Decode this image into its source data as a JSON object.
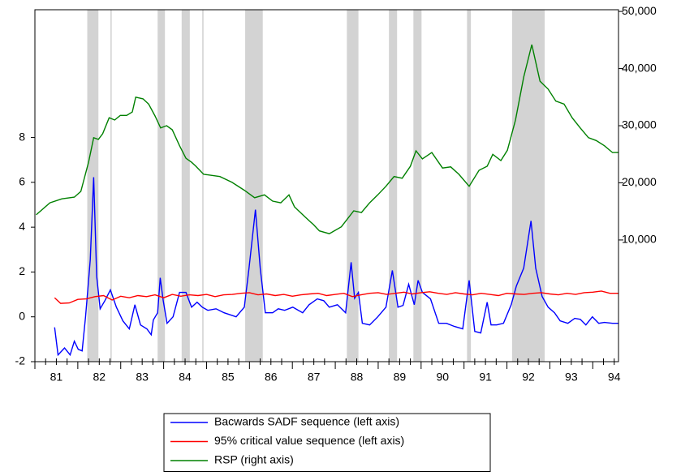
{
  "chart_data": {
    "type": "line",
    "xlim": [
      81,
      94.6
    ],
    "xticks": [
      81,
      82,
      83,
      84,
      85,
      86,
      87,
      88,
      89,
      90,
      91,
      92,
      93,
      94
    ],
    "ylim": [
      -2,
      13.7
    ],
    "yticks": [
      -2,
      0,
      2,
      4,
      6,
      8
    ],
    "y2lim": [
      -11300,
      50300
    ],
    "y2ticks": [
      {
        "value": 10000,
        "label": "10,000"
      },
      {
        "value": 20000,
        "label": "20,000"
      },
      {
        "value": 30000,
        "label": "30,000"
      },
      {
        "value": 40000,
        "label": "40,000"
      },
      {
        "value": 50000,
        "label": "50,000"
      }
    ],
    "shade_color": "#d3d3d3",
    "shaded_regions": [
      [
        82.22,
        82.48
      ],
      [
        82.76,
        82.79
      ],
      [
        83.86,
        84.03
      ],
      [
        84.42,
        84.61
      ],
      [
        84.9,
        84.93
      ],
      [
        85.9,
        86.31
      ],
      [
        88.27,
        88.54
      ],
      [
        89.25,
        89.44
      ],
      [
        89.82,
        90.01
      ],
      [
        91.07,
        91.16
      ],
      [
        92.12,
        92.88
      ]
    ],
    "legend": "bottom",
    "series": [
      {
        "name": "Bacwards SADF sequence (left axis)",
        "color": "#0000ff",
        "x": [
          81.46,
          81.54,
          81.69,
          81.82,
          81.92,
          82.01,
          82.1,
          82.18,
          82.29,
          82.37,
          82.44,
          82.52,
          82.63,
          82.76,
          82.9,
          83.05,
          83.2,
          83.33,
          83.46,
          83.61,
          83.71,
          83.76,
          83.86,
          83.92,
          83.99,
          84.08,
          84.22,
          84.37,
          84.52,
          84.65,
          84.78,
          84.9,
          85.03,
          85.22,
          85.41,
          85.69,
          85.88,
          85.99,
          86.14,
          86.25,
          86.37,
          86.54,
          86.67,
          86.82,
          87.01,
          87.24,
          87.39,
          87.58,
          87.73,
          87.86,
          88.05,
          88.24,
          88.37,
          88.45,
          88.54,
          88.63,
          88.8,
          88.99,
          89.18,
          89.33,
          89.46,
          89.58,
          89.71,
          89.84,
          89.93,
          90.03,
          90.22,
          90.41,
          90.59,
          90.78,
          90.97,
          91.12,
          91.25,
          91.39,
          91.54,
          91.63,
          91.76,
          91.92,
          92.1,
          92.22,
          92.39,
          92.56,
          92.67,
          92.82,
          92.96,
          93.11,
          93.24,
          93.42,
          93.58,
          93.71,
          93.84,
          93.99,
          94.14,
          94.27,
          94.46,
          94.59
        ],
        "values": [
          -0.47,
          -1.7,
          -1.39,
          -1.7,
          -1.09,
          -1.45,
          -1.52,
          0,
          2.54,
          6.23,
          1.81,
          0.36,
          0.72,
          1.2,
          0.43,
          -0.18,
          -0.54,
          0.54,
          -0.36,
          -0.54,
          -0.8,
          -0.14,
          0.18,
          1.74,
          0.72,
          -0.29,
          0,
          1.09,
          1.09,
          0.43,
          0.65,
          0.43,
          0.29,
          0.36,
          0.18,
          0,
          0.43,
          2.17,
          4.78,
          2.17,
          0.18,
          0.18,
          0.36,
          0.29,
          0.43,
          0.18,
          0.54,
          0.8,
          0.72,
          0.43,
          0.54,
          0.18,
          2.43,
          0.83,
          1.09,
          -0.29,
          -0.36,
          0,
          0.43,
          2.07,
          0.43,
          0.51,
          1.45,
          0.54,
          1.63,
          1.09,
          0.8,
          -0.29,
          -0.29,
          -0.43,
          -0.54,
          1.63,
          -0.65,
          -0.72,
          0.65,
          -0.36,
          -0.36,
          -0.29,
          0.54,
          1.38,
          2.17,
          4.28,
          2.17,
          0.91,
          0.43,
          0.18,
          -0.18,
          -0.29,
          -0.07,
          -0.11,
          -0.36,
          0,
          -0.29,
          -0.25,
          -0.29,
          -0.29
        ]
      },
      {
        "name": "95% critical value sequence (left axis)",
        "color": "#ff0000",
        "x": [
          81.46,
          81.6,
          81.8,
          82.0,
          82.2,
          82.4,
          82.6,
          82.8,
          83.0,
          83.2,
          83.4,
          83.6,
          83.8,
          84.0,
          84.2,
          84.4,
          84.6,
          84.8,
          85.0,
          85.2,
          85.4,
          85.6,
          85.8,
          86.0,
          86.2,
          86.4,
          86.6,
          86.8,
          87.0,
          87.2,
          87.4,
          87.6,
          87.8,
          88.0,
          88.2,
          88.4,
          88.6,
          88.8,
          89.0,
          89.2,
          89.4,
          89.6,
          89.8,
          90.0,
          90.2,
          90.4,
          90.6,
          90.8,
          91.0,
          91.2,
          91.4,
          91.6,
          91.8,
          92.0,
          92.2,
          92.4,
          92.6,
          92.8,
          93.0,
          93.2,
          93.4,
          93.6,
          93.8,
          94.0,
          94.2,
          94.4,
          94.6
        ],
        "values": [
          0.85,
          0.6,
          0.62,
          0.78,
          0.8,
          0.9,
          0.95,
          0.75,
          0.92,
          0.85,
          0.95,
          0.9,
          0.98,
          0.85,
          1.0,
          0.92,
          0.98,
          0.95,
          1.0,
          0.9,
          0.98,
          1.0,
          1.05,
          1.08,
          0.98,
          1.02,
          0.95,
          1.0,
          0.92,
          0.98,
          1.02,
          1.05,
          0.95,
          1.0,
          1.05,
          0.9,
          0.98,
          1.05,
          1.08,
          1.0,
          1.05,
          1.1,
          1.02,
          1.08,
          1.12,
          1.05,
          1.0,
          1.08,
          1.02,
          0.98,
          1.05,
          1.0,
          0.95,
          1.05,
          1.02,
          1.0,
          1.05,
          1.08,
          1.02,
          0.98,
          1.05,
          1.0,
          1.08,
          1.1,
          1.15,
          1.05,
          1.05
        ]
      },
      {
        "name": "RSP (right axis)",
        "color": "#008000",
        "axis": "y2",
        "x": [
          81.03,
          81.35,
          81.63,
          81.92,
          82.07,
          82.25,
          82.37,
          82.48,
          82.58,
          82.73,
          82.86,
          82.99,
          83.14,
          83.27,
          83.35,
          83.52,
          83.65,
          83.8,
          83.93,
          84.07,
          84.2,
          84.37,
          84.52,
          84.65,
          84.75,
          84.93,
          85.31,
          85.59,
          85.88,
          86.12,
          86.35,
          86.54,
          86.73,
          86.92,
          87.05,
          87.3,
          87.49,
          87.63,
          87.86,
          88.14,
          88.43,
          88.61,
          88.8,
          88.99,
          89.18,
          89.37,
          89.56,
          89.75,
          89.88,
          90.03,
          90.25,
          90.5,
          90.69,
          90.88,
          91.12,
          91.35,
          91.54,
          91.67,
          91.86,
          92.01,
          92.2,
          92.39,
          92.58,
          92.77,
          92.96,
          93.14,
          93.33,
          93.52,
          93.71,
          93.9,
          94.08,
          94.27,
          94.46,
          94.59
        ],
        "values": [
          14400,
          16500,
          17200,
          17500,
          18500,
          23600,
          27900,
          27600,
          28600,
          31400,
          31000,
          31800,
          31800,
          32400,
          35000,
          34700,
          33800,
          31700,
          29600,
          30000,
          29300,
          26500,
          24300,
          23600,
          22900,
          21500,
          21100,
          20100,
          18700,
          17400,
          17900,
          16800,
          16500,
          17900,
          15800,
          14000,
          12700,
          11600,
          11100,
          12300,
          15100,
          14800,
          16500,
          17900,
          19400,
          21100,
          20800,
          22900,
          25600,
          24200,
          25300,
          22600,
          22800,
          21500,
          19400,
          22200,
          22900,
          25000,
          23900,
          25700,
          31000,
          38500,
          44200,
          37800,
          36400,
          34300,
          33800,
          31400,
          29600,
          27900,
          27400,
          26500,
          25300,
          25300
        ]
      }
    ]
  }
}
